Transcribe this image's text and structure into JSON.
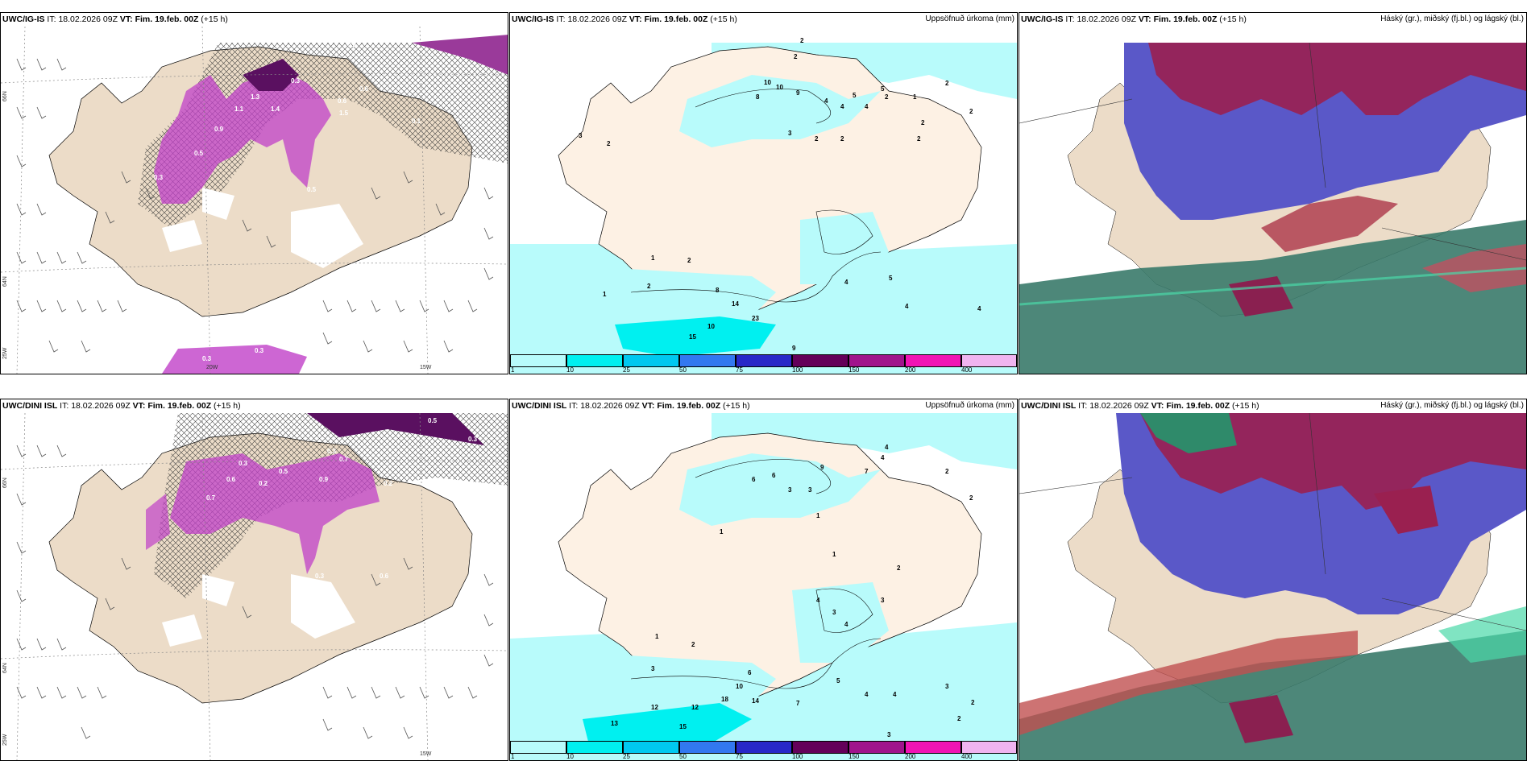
{
  "panels": [
    {
      "id": "p1",
      "model": "UWC/IG-IS",
      "it_label": "IT:",
      "it_value": "18.02.2026 09Z",
      "vt_label": "VT:",
      "vt_value": "Fim. 19.feb. 00Z",
      "lead": "(+15 h)",
      "right_title": "",
      "type": "wind"
    },
    {
      "id": "p2",
      "model": "UWC/IG-IS",
      "it_label": "IT:",
      "it_value": "18.02.2026 09Z",
      "vt_label": "VT:",
      "vt_value": "Fim. 19.feb. 00Z",
      "lead": "(+15 h)",
      "right_title": "Uppsöfnuð úrkoma (mm)",
      "type": "precip"
    },
    {
      "id": "p3",
      "model": "UWC/IG-IS",
      "it_label": "IT:",
      "it_value": "18.02.2026 09Z",
      "vt_label": "VT:",
      "vt_value": "Fim. 19.feb. 00Z",
      "lead": "(+15 h)",
      "right_title": "Háský (gr.), miðský (fj.bl.) og lágský (bl.)",
      "type": "cloud"
    },
    {
      "id": "p4",
      "model": "UWC/DINI ISL",
      "it_label": "IT:",
      "it_value": "18.02.2026 09Z",
      "vt_label": "VT:",
      "vt_value": "Fim. 19.feb. 00Z",
      "lead": "(+15 h)",
      "right_title": "",
      "type": "wind"
    },
    {
      "id": "p5",
      "model": "UWC/DINI ISL",
      "it_label": "IT:",
      "it_value": "18.02.2026 09Z",
      "vt_label": "VT:",
      "vt_value": "Fim. 19.feb. 00Z",
      "lead": "(+15 h)",
      "right_title": "Uppsöfnuð úrkoma (mm)",
      "type": "precip"
    },
    {
      "id": "p6",
      "model": "UWC/DINI ISL",
      "it_label": "IT:",
      "it_value": "18.02.2026 09Z",
      "vt_label": "VT:",
      "vt_value": "Fim. 19.feb. 00Z",
      "lead": "(+15 h)",
      "right_title": "Háský (gr.), miðský (fj.bl.) og lágský (bl.)",
      "type": "cloud"
    }
  ],
  "grid_labels": {
    "lat66": "66N",
    "lat64": "64N",
    "lon25": "25W",
    "lon20": "20W",
    "lon15": "15W"
  },
  "colorbar": {
    "ticks": [
      "1",
      "10",
      "25",
      "50",
      "75",
      "100",
      "150",
      "200",
      "400"
    ],
    "colors": [
      "#b8fbfb",
      "#00f0f0",
      "#00c8f0",
      "#3278f0",
      "#2828c8",
      "#64005a",
      "#a0148c",
      "#f014b4",
      "#f0b4f0"
    ]
  },
  "wind_labels_top": [
    "0.3",
    "0.6",
    "0.6",
    "1.3",
    "1.4",
    "1.5",
    "0.5",
    "0.2",
    "0.3",
    "0.3",
    "1.1",
    "0.9",
    "0.5",
    "0.3",
    "0.1"
  ],
  "wind_labels_bottom": [
    "0.5",
    "0.3",
    "0.7",
    "0.3",
    "0.9",
    "0.6",
    "0.7",
    "0.5",
    "0.3",
    "0.2",
    "0.2",
    "0.1",
    "0.3",
    "0.6"
  ],
  "precip_labels_top": [
    "2",
    "2",
    "2",
    "10",
    "10",
    "8",
    "9",
    "4",
    "5",
    "3",
    "3",
    "2",
    "2",
    "2",
    "2",
    "4",
    "4",
    "5",
    "1",
    "2",
    "2",
    "1",
    "8",
    "14",
    "23",
    "10",
    "15",
    "9",
    "4",
    "5",
    "4",
    "4",
    "2",
    "1",
    "2",
    "2"
  ],
  "precip_labels_bottom": [
    "4",
    "4",
    "2",
    "2",
    "9",
    "7",
    "6",
    "6",
    "3",
    "1",
    "3",
    "1",
    "1",
    "2",
    "4",
    "3",
    "4",
    "3",
    "1",
    "2",
    "3",
    "6",
    "10",
    "18",
    "14",
    "12",
    "12",
    "13",
    "15",
    "7",
    "5",
    "4",
    "4",
    "3",
    "2",
    "2",
    "3"
  ]
}
